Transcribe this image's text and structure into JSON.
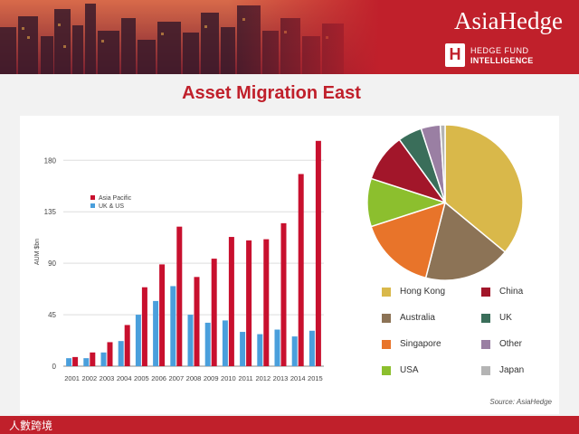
{
  "header": {
    "brand_name": "AsiaHedge",
    "sub_brand_line1": "HEDGE FUND",
    "sub_brand_line2": "INTELLIGENCE"
  },
  "title": "Asset Migration East",
  "footer": {
    "watermark": "人數跨境"
  },
  "colors": {
    "brand_red": "#c0202b",
    "asia_pacific": "#c8102e",
    "uk_us": "#4a9fdc"
  },
  "chart_data": [
    {
      "type": "bar",
      "ylabel": "AUM $bn",
      "ylim": [
        0,
        200
      ],
      "yticks": [
        0,
        45,
        90,
        135,
        180
      ],
      "grid": true,
      "legend_position": "top-left",
      "categories": [
        "2001",
        "2002",
        "2003",
        "2004",
        "2005",
        "2006",
        "2007",
        "2008",
        "2009",
        "2010",
        "2011",
        "2012",
        "2013",
        "2014",
        "2015"
      ],
      "series": [
        {
          "name": "Asia Pacific",
          "color": "#c8102e",
          "values": [
            8,
            12,
            21,
            36,
            69,
            89,
            122,
            78,
            94,
            113,
            110,
            111,
            125,
            168,
            197
          ]
        },
        {
          "name": "UK & US",
          "color": "#4a9fdc",
          "values": [
            7,
            7,
            12,
            22,
            45,
            57,
            70,
            45,
            38,
            40,
            30,
            28,
            32,
            26,
            31
          ]
        }
      ]
    },
    {
      "type": "pie",
      "source": "Source: AsiaHedge",
      "slices": [
        {
          "label": "Hong Kong",
          "value": 36,
          "color": "#d9b84a"
        },
        {
          "label": "Australia",
          "value": 18,
          "color": "#8c7356"
        },
        {
          "label": "Singapore",
          "value": 16,
          "color": "#e8742a"
        },
        {
          "label": "USA",
          "value": 10,
          "color": "#8cbf2e"
        },
        {
          "label": "China",
          "value": 10,
          "color": "#a2162a"
        },
        {
          "label": "UK",
          "value": 5,
          "color": "#3a6e5a"
        },
        {
          "label": "Other",
          "value": 4,
          "color": "#9a7fa3"
        },
        {
          "label": "Japan",
          "value": 1,
          "color": "#b4b4b4"
        }
      ],
      "legend_order": [
        "Hong Kong",
        "China",
        "Australia",
        "UK",
        "Singapore",
        "Other",
        "USA",
        "Japan"
      ]
    }
  ]
}
